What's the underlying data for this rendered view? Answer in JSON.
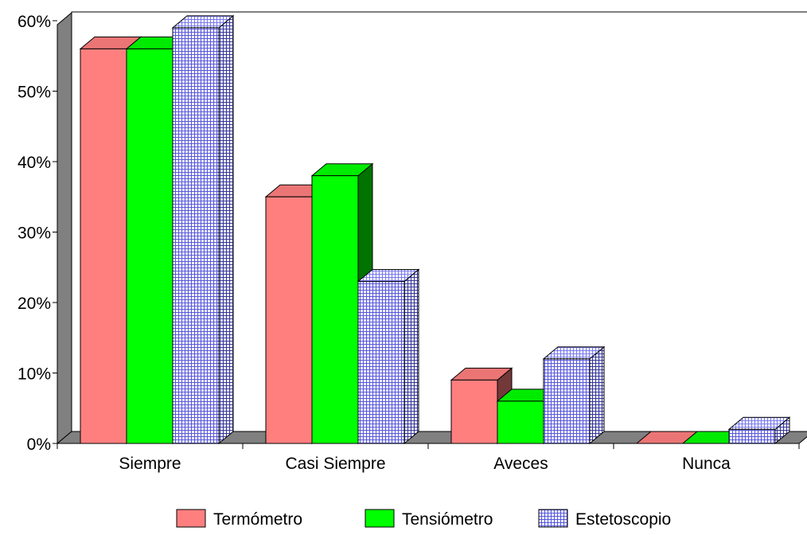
{
  "chart_data": {
    "type": "bar",
    "style": "3d-clustered-column",
    "categories": [
      "Siempre",
      "Casi Siempre",
      "Aveces",
      "Nunca"
    ],
    "series": [
      {
        "name": "Termómetro",
        "values": [
          56,
          35,
          9,
          0
        ],
        "color": "#FF7F7F",
        "pattern": "solid"
      },
      {
        "name": "Tensiómetro",
        "values": [
          56,
          38,
          6,
          0
        ],
        "color": "#00FF00",
        "pattern": "solid"
      },
      {
        "name": "Estetoscopio",
        "values": [
          59,
          23,
          12,
          2
        ],
        "color": "#9999FF",
        "pattern": "grid"
      }
    ],
    "ylim": [
      0,
      60
    ],
    "yticks": [
      "0%",
      "10%",
      "20%",
      "30%",
      "40%",
      "50%",
      "60%"
    ],
    "grid": false,
    "legend_position": "bottom",
    "wall_color": "#808080"
  }
}
